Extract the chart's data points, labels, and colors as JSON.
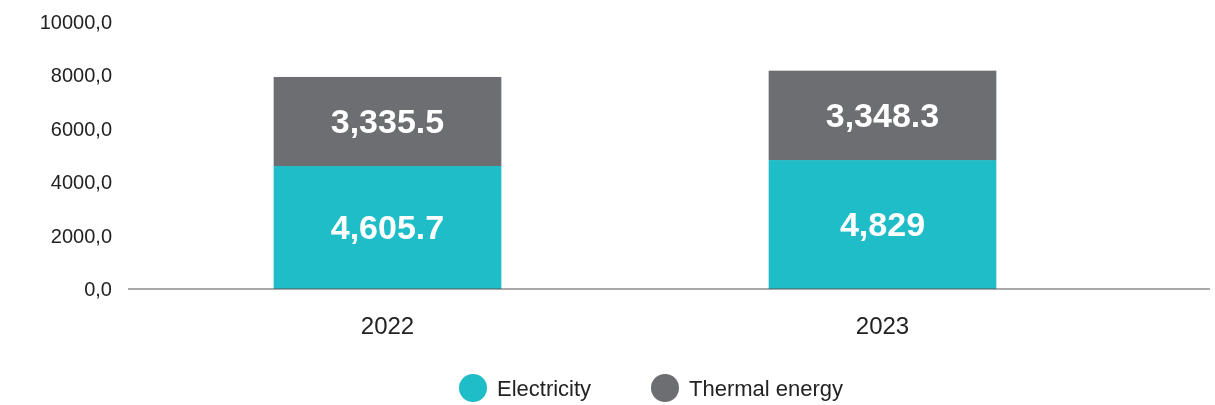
{
  "chart_data": {
    "type": "bar",
    "stacked": true,
    "categories": [
      "2022",
      "2023"
    ],
    "series": [
      {
        "name": "Electricity",
        "color": "#1fbdc8",
        "values": [
          4605.7,
          4829
        ],
        "value_labels": [
          "4,605.7",
          "4,829"
        ]
      },
      {
        "name": "Thermal energy",
        "color": "#6d6e71",
        "values": [
          3335.5,
          3348.3
        ],
        "value_labels": [
          "3,335.5",
          "3,348.3"
        ]
      }
    ],
    "ylim": [
      0,
      10000
    ],
    "yticks": [
      {
        "value": 0,
        "label": "0,0"
      },
      {
        "value": 2000,
        "label": "2000,0"
      },
      {
        "value": 4000,
        "label": "4000,0"
      },
      {
        "value": 6000,
        "label": "6000,0"
      },
      {
        "value": 8000,
        "label": "8000,0"
      },
      {
        "value": 10000,
        "label": "10000,0"
      }
    ],
    "grid": false,
    "legend": "bottom"
  }
}
